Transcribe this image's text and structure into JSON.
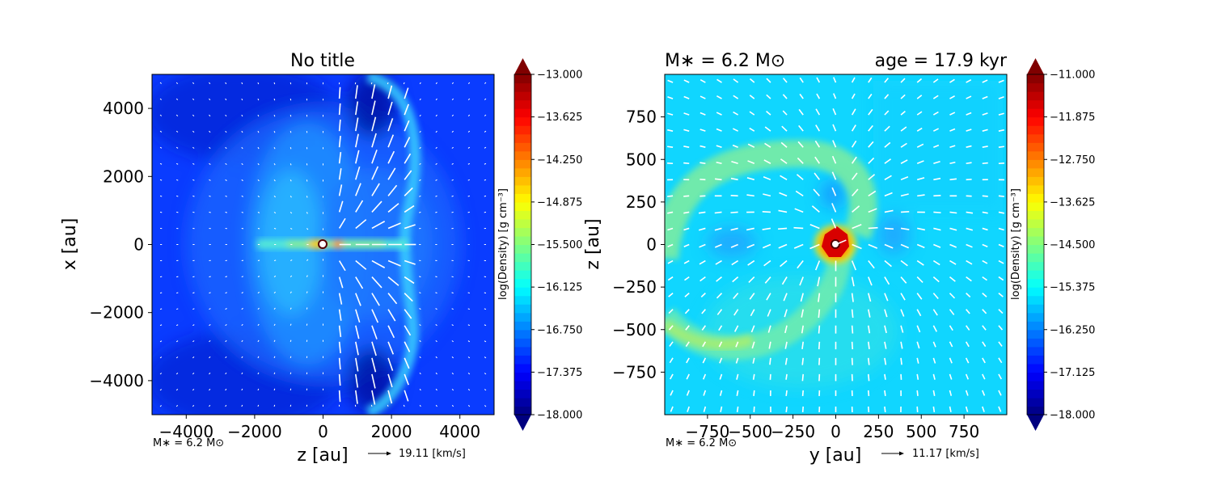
{
  "chart_data": [
    {
      "type": "heatmap",
      "subtype": "density map with velocity vectors",
      "title": "No title",
      "xlabel": "z [au]",
      "ylabel": "x [au]",
      "xlim": [
        -5000,
        5000
      ],
      "ylim": [
        -5000,
        5000
      ],
      "xticks": [
        -4000,
        -2000,
        0,
        2000,
        4000
      ],
      "yticks": [
        -4000,
        -2000,
        0,
        2000,
        4000
      ],
      "xtick_labels": [
        "−4000",
        "−2000",
        "0",
        "2000",
        "4000"
      ],
      "ytick_labels": [
        "−4000",
        "−2000",
        "0",
        "2000",
        "4000"
      ],
      "annotation": "M∗ = 6.2 M⊙",
      "vector_key": "19.11 [km/s]",
      "features": {
        "background_log_density": -17.6,
        "disk_log_density": -15.4,
        "disk_x_extent": [
          -1900,
          2500
        ],
        "bubble_edge_z": 2400,
        "sink_position": [
          0,
          0
        ]
      },
      "colorbar": {
        "label": "log(Density) [g cm⁻³]",
        "range": [
          -18.0,
          -13.0
        ],
        "tick_values": [
          -13.0,
          -13.625,
          -14.25,
          -14.875,
          -15.5,
          -16.125,
          -16.75,
          -17.375,
          -18.0
        ],
        "tick_labels": [
          "−13.000",
          "−13.625",
          "−14.250",
          "−14.875",
          "−15.500",
          "−16.125",
          "−16.750",
          "−17.375",
          "−18.000"
        ],
        "colormap": "jet"
      }
    },
    {
      "type": "heatmap",
      "subtype": "density map with velocity vectors",
      "title_left": "M∗ = 6.2 M⊙",
      "title_right": "age = 17.9 kyr",
      "xlabel": "y [au]",
      "ylabel": "z [au]",
      "xlim": [
        -1000,
        1000
      ],
      "ylim": [
        -1000,
        1000
      ],
      "xticks": [
        -750,
        -500,
        -250,
        0,
        250,
        500,
        750
      ],
      "yticks": [
        -750,
        -500,
        -250,
        0,
        250,
        500,
        750
      ],
      "xtick_labels": [
        "−750",
        "−500",
        "−250",
        "0",
        "250",
        "500",
        "750"
      ],
      "ytick_labels": [
        "−750",
        "−500",
        "−250",
        "0",
        "250",
        "500",
        "750"
      ],
      "annotation": "M∗ = 6.2 M⊙",
      "vector_key": "11.17 [km/s]",
      "features": {
        "background_log_density": -15.2,
        "arc_log_density": -14.3,
        "core_log_density": -11.3,
        "sink_position": [
          0,
          0
        ]
      },
      "colorbar": {
        "label": "log(Density) [g cm⁻³]",
        "range": [
          -18.0,
          -11.0
        ],
        "tick_values": [
          -11.0,
          -11.875,
          -12.75,
          -13.625,
          -14.5,
          -15.375,
          -16.25,
          -17.125,
          -18.0
        ],
        "tick_labels": [
          "−11.000",
          "−11.875",
          "−12.750",
          "−13.625",
          "−14.500",
          "−15.375",
          "−16.250",
          "−17.125",
          "−18.000"
        ],
        "colormap": "jet"
      }
    }
  ]
}
